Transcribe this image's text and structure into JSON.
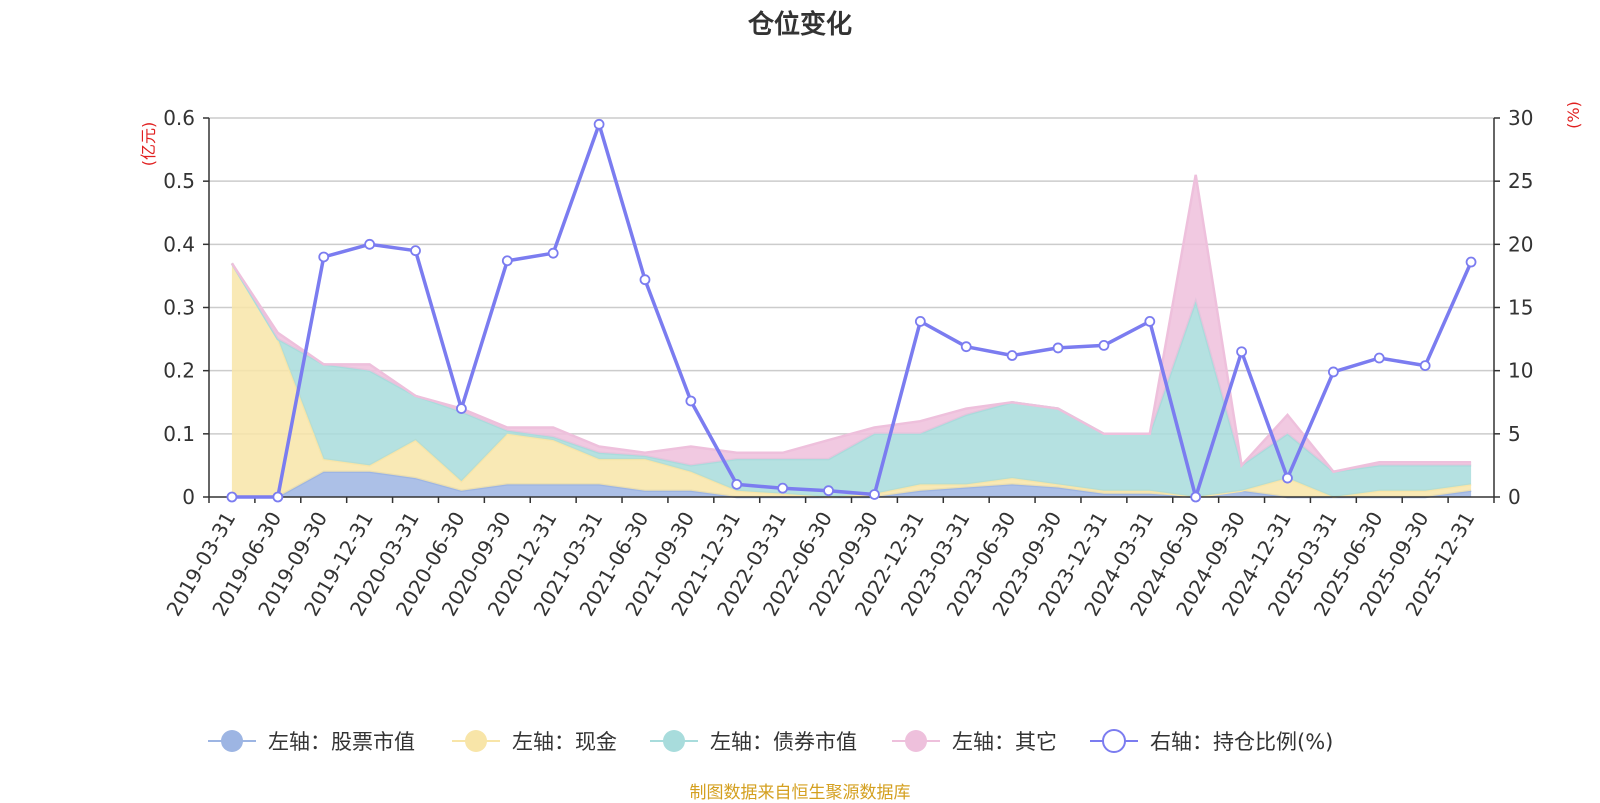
{
  "chart_data": {
    "type": "area",
    "title": "仓位变化",
    "left_axis": {
      "unit_label": "(亿元)",
      "ylim": [
        0,
        0.6
      ],
      "ticks": [
        0,
        0.1,
        0.2,
        0.3,
        0.4,
        0.5,
        0.6
      ],
      "tick_labels": [
        "0",
        "0.1",
        "0.2",
        "0.3",
        "0.4",
        "0.5",
        "0.6"
      ]
    },
    "right_axis": {
      "unit_label": "(%)",
      "ylim": [
        0,
        30
      ],
      "ticks": [
        0,
        5,
        10,
        15,
        20,
        25,
        30
      ],
      "tick_labels": [
        "0",
        "5",
        "10",
        "15",
        "20",
        "25",
        "30"
      ]
    },
    "categories": [
      "2019-03-31",
      "2019-06-30",
      "2019-09-30",
      "2019-12-31",
      "2020-03-31",
      "2020-06-30",
      "2020-09-30",
      "2020-12-31",
      "2021-03-31",
      "2021-06-30",
      "2021-09-30",
      "2021-12-31",
      "2022-03-31",
      "2022-06-30",
      "2022-09-30",
      "2022-12-31",
      "2023-03-31",
      "2023-06-30",
      "2023-09-30",
      "2023-12-31",
      "2024-03-31",
      "2024-06-30",
      "2024-09-30",
      "2024-12-31",
      "2025-03-31",
      "2025-06-30",
      "2025-09-30",
      "2025-12-31"
    ],
    "series": [
      {
        "name": "左轴：股票市值",
        "axis": "left",
        "stacked": true,
        "color": "#9db5e3",
        "values": [
          0,
          0,
          0.04,
          0.04,
          0.03,
          0.01,
          0.02,
          0.02,
          0.02,
          0.01,
          0.01,
          0,
          0,
          0,
          0,
          0.01,
          0.015,
          0.02,
          0.015,
          0.005,
          0.005,
          0,
          0.01,
          0,
          0,
          0,
          0,
          0.01
        ]
      },
      {
        "name": "左轴：现金",
        "axis": "left",
        "stacked": true,
        "color": "#f8e5a8",
        "values": [
          0.37,
          0.25,
          0.02,
          0.01,
          0.06,
          0.015,
          0.08,
          0.07,
          0.04,
          0.05,
          0.03,
          0.01,
          0.005,
          0,
          0.005,
          0.01,
          0.005,
          0.01,
          0.005,
          0.005,
          0.005,
          0,
          0,
          0.03,
          0,
          0.01,
          0.01,
          0.01
        ]
      },
      {
        "name": "左轴：债券市值",
        "axis": "left",
        "stacked": true,
        "color": "#a8dcdc",
        "values": [
          0,
          0,
          0.15,
          0.15,
          0.07,
          0.11,
          0.005,
          0.005,
          0.01,
          0.005,
          0.01,
          0.05,
          0.055,
          0.06,
          0.095,
          0.08,
          0.11,
          0.12,
          0.12,
          0.09,
          0.09,
          0.31,
          0.04,
          0.07,
          0.04,
          0.04,
          0.04,
          0.03
        ]
      },
      {
        "name": "左轴：其它",
        "axis": "left",
        "stacked": true,
        "color": "#eec0dc",
        "values": [
          0,
          0.01,
          0,
          0.01,
          0,
          0.005,
          0.005,
          0.015,
          0.01,
          0.005,
          0.03,
          0.01,
          0.01,
          0.03,
          0.01,
          0.02,
          0.01,
          0,
          0,
          0,
          0,
          0.2,
          0,
          0.03,
          0,
          0.005,
          0.005,
          0.005
        ]
      },
      {
        "name": "右轴：持仓比例(%)",
        "axis": "right",
        "stacked": false,
        "color": "#7b7cf0",
        "values": [
          0,
          0,
          19,
          20,
          19.5,
          7,
          18.7,
          19.3,
          29.5,
          17.2,
          7.6,
          1,
          0.7,
          0.5,
          0.2,
          13.9,
          11.9,
          11.2,
          11.8,
          12,
          13.9,
          0,
          11.5,
          1.5,
          9.9,
          11,
          10.4,
          18.6
        ]
      }
    ]
  },
  "source_note": "制图数据来自恒生聚源数据库"
}
